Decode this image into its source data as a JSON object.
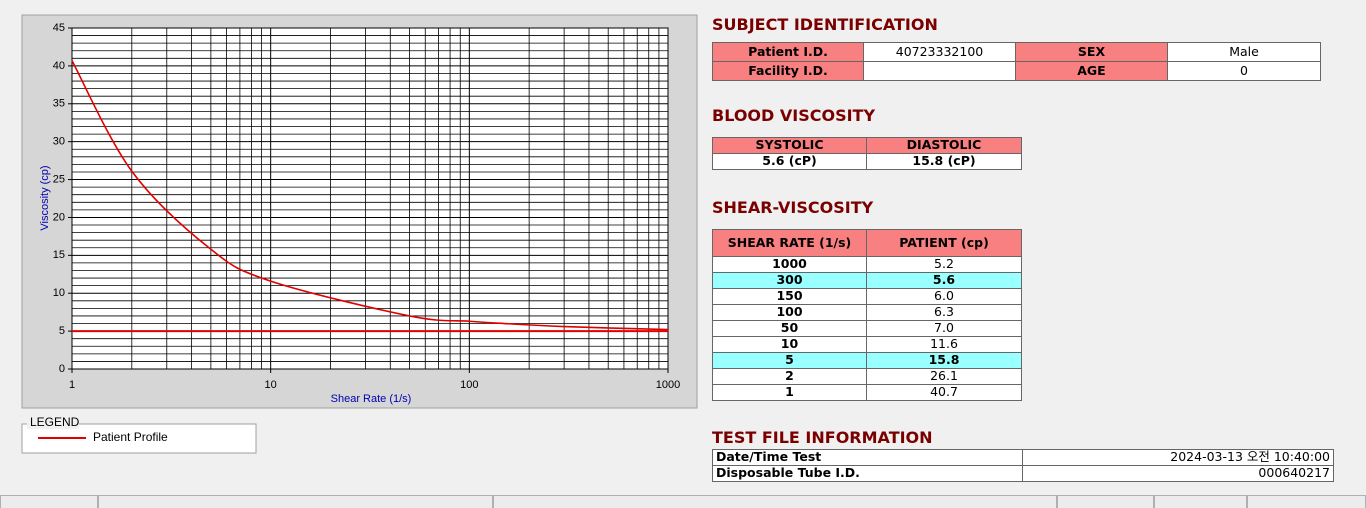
{
  "chart_data": {
    "type": "line",
    "x_label": "Shear Rate (1/s)",
    "y_label": "Viscosity (cp)",
    "xscale": "log",
    "x": [
      1000,
      300,
      150,
      100,
      50,
      10,
      5,
      2,
      1
    ],
    "series": [
      {
        "name": "Patient Profile",
        "color": "#e00000",
        "values": [
          5.2,
          5.6,
          6.0,
          6.3,
          7.0,
          11.6,
          15.8,
          26.1,
          40.7
        ]
      }
    ],
    "xlim": [
      1,
      1000
    ],
    "xticks": [
      1,
      10,
      100,
      1000
    ],
    "ylim": [
      0,
      45
    ],
    "yticks": [
      0,
      5,
      10,
      15,
      20,
      25,
      30,
      35,
      40,
      45
    ],
    "grid": true,
    "reference_line": {
      "y": 5,
      "color": "#e00000"
    },
    "legend_title": "LEGEND"
  },
  "subject": {
    "title": "SUBJECT IDENTIFICATION",
    "rows": [
      [
        "Patient I.D.",
        "40723332100",
        "SEX",
        "Male"
      ],
      [
        "Facility I.D.",
        null,
        "AGE",
        "0"
      ]
    ]
  },
  "blood": {
    "title": "BLOOD VISCOSITY",
    "header": [
      "SYSTOLIC",
      "DIASTOLIC"
    ],
    "values": [
      "5.6 (cP)",
      "15.8 (cP)"
    ]
  },
  "shear": {
    "title": "SHEAR-VISCOSITY",
    "header": [
      "SHEAR RATE (1/s)",
      "PATIENT (cp)"
    ],
    "rows": [
      [
        "1000",
        "5.2"
      ],
      [
        "300",
        "5.6"
      ],
      [
        "150",
        "6.0"
      ],
      [
        "100",
        "6.3"
      ],
      [
        "50",
        "7.0"
      ],
      [
        "10",
        "11.6"
      ],
      [
        "5",
        "15.8"
      ],
      [
        "2",
        "26.1"
      ],
      [
        "1",
        "40.7"
      ]
    ],
    "highlighted_rows": [
      1,
      6
    ]
  },
  "test_file": {
    "title": "TEST FILE INFORMATION",
    "rows": [
      [
        "Date/Time Test",
        "2024-03-13  오전 10:40:00"
      ],
      [
        "Disposable Tube I.D.",
        "000640217"
      ]
    ]
  }
}
